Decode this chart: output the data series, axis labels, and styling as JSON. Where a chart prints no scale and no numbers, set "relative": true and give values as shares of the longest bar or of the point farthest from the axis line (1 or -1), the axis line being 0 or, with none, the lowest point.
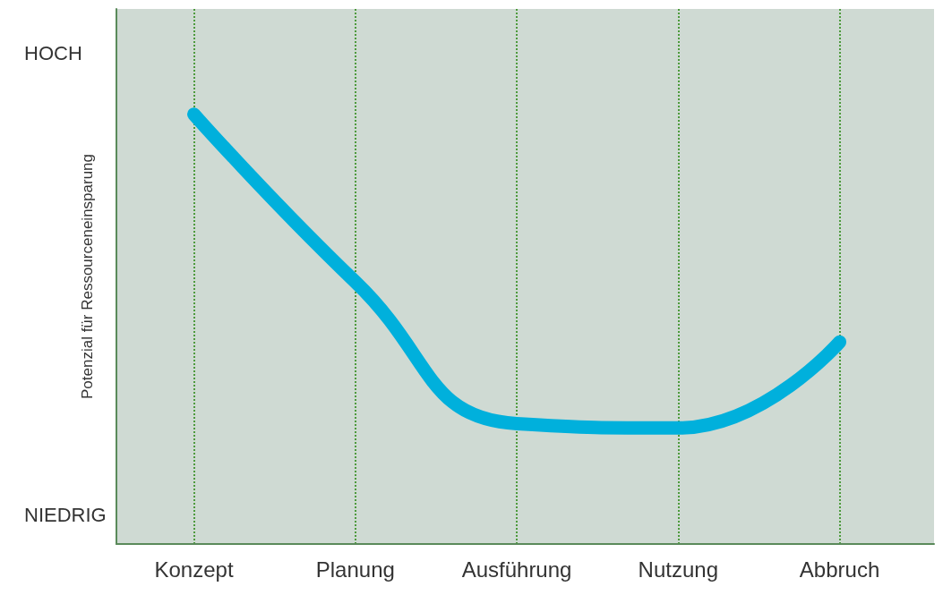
{
  "chart_data": {
    "type": "line",
    "relative": true,
    "ylabel": "Potenzial für Ressourceneinsparung",
    "categories": [
      "Konzept",
      "Planung",
      "Ausführung",
      "Nutzung",
      "Abbruch"
    ],
    "series": [
      {
        "color": "#00b0dc",
        "values": [
          1,
          0.61,
          0.28,
          0.27,
          0.47
        ]
      }
    ],
    "annotations": [
      "HOCH",
      "NIEDRIG"
    ],
    "grid": "x",
    "line_style": "solid"
  }
}
